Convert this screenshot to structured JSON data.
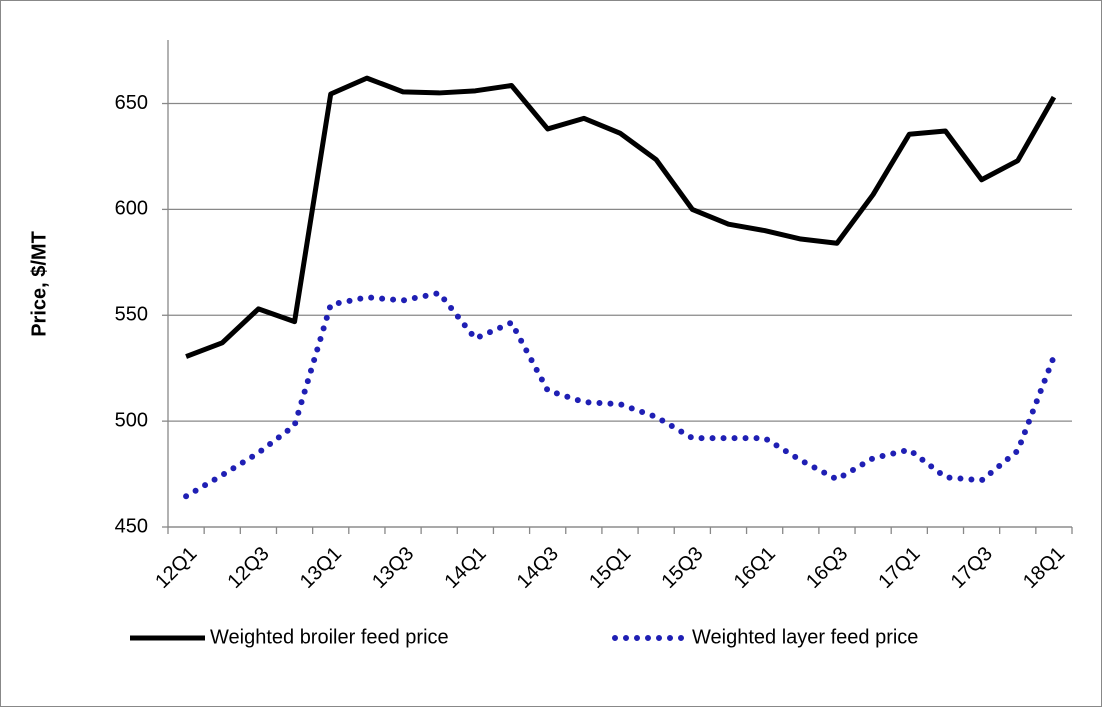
{
  "chart_data": {
    "type": "line",
    "y_label": "Price, $/MT",
    "categories": [
      "12Q1",
      null,
      "12Q3",
      null,
      "13Q1",
      null,
      "13Q3",
      null,
      "14Q1",
      null,
      "14Q3",
      null,
      "15Q1",
      null,
      "15Q3",
      null,
      "16Q1",
      null,
      "16Q3",
      null,
      "17Q1",
      null,
      "17Q3",
      null,
      "18Q1"
    ],
    "series": [
      {
        "name": "Weighted broiler feed price",
        "color": "#000000",
        "dash": "solid",
        "values": [
          530.5,
          537,
          553,
          547,
          654.5,
          662,
          655.5,
          655,
          656,
          658.5,
          638,
          643,
          636,
          623.5,
          600,
          593,
          590,
          586,
          584,
          607,
          635.5,
          637,
          614,
          623,
          653
        ]
      },
      {
        "name": "Weighted layer feed price",
        "color": "#1f1fb4",
        "dash": "dotted",
        "values": [
          464.5,
          474.5,
          485,
          498,
          555,
          558.5,
          557,
          560.5,
          539,
          546.5,
          514.5,
          509,
          508,
          502,
          492,
          492,
          492,
          481.5,
          472.5,
          482.5,
          486.5,
          473.5,
          472,
          486,
          530.5
        ]
      }
    ],
    "ylim": [
      450,
      680
    ],
    "yticks": [
      450,
      500,
      550,
      600,
      650
    ],
    "grid": true,
    "legend": "bottom"
  }
}
